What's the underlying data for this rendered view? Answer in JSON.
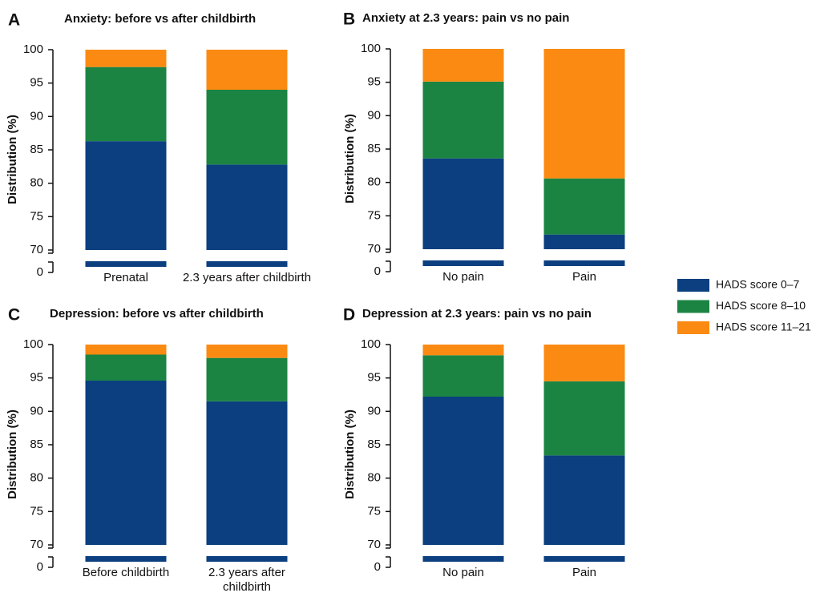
{
  "chart_data": [
    {
      "type": "bar",
      "stacked": true,
      "label": "A",
      "title": "Anxiety: before vs after childbirth",
      "y_label": "Distribution (%)",
      "categories": [
        "Prenatal",
        "2.3 years after childbirth"
      ],
      "series": [
        {
          "name": "HADS score 0–7",
          "color": "#0b3f7f",
          "values": [
            86.3,
            82.8
          ]
        },
        {
          "name": "HADS score 8–10",
          "color": "#1b8443",
          "values": [
            11.1,
            11.2
          ]
        },
        {
          "name": "HADS score 11–21",
          "color": "#fb8a12",
          "values": [
            2.6,
            6.0
          ]
        }
      ],
      "ylim": [
        0,
        100
      ],
      "ybreak": [
        0,
        70
      ],
      "yticks": [
        0,
        70,
        75,
        80,
        85,
        90,
        95,
        100
      ],
      "legend": "right"
    },
    {
      "type": "bar",
      "stacked": true,
      "label": "B",
      "title": "Anxiety at 2.3 years: pain vs no pain",
      "y_label": "Distribution (%)",
      "categories": [
        "No pain",
        "Pain"
      ],
      "series": [
        {
          "name": "HADS score 0–7",
          "color": "#0b3f7f",
          "values": [
            83.6,
            72.2
          ]
        },
        {
          "name": "HADS score 8–10",
          "color": "#1b8443",
          "values": [
            11.5,
            8.4
          ]
        },
        {
          "name": "HADS score 11–21",
          "color": "#fb8a12",
          "values": [
            4.9,
            19.4
          ]
        }
      ],
      "ylim": [
        0,
        100
      ],
      "ybreak": [
        0,
        70
      ],
      "yticks": [
        0,
        70,
        75,
        80,
        85,
        90,
        95,
        100
      ]
    },
    {
      "type": "bar",
      "stacked": true,
      "label": "C",
      "title": "Depression: before vs after childbirth",
      "y_label": "Distribution (%)",
      "categories": [
        "Before childbirth",
        "2.3 years after childbirth"
      ],
      "series": [
        {
          "name": "HADS score 0–7",
          "color": "#0b3f7f",
          "values": [
            94.6,
            91.5
          ]
        },
        {
          "name": "HADS score 8–10",
          "color": "#1b8443",
          "values": [
            3.9,
            6.5
          ]
        },
        {
          "name": "HADS score 11–21",
          "color": "#fb8a12",
          "values": [
            1.5,
            2.0
          ]
        }
      ],
      "ylim": [
        0,
        100
      ],
      "ybreak": [
        0,
        70
      ],
      "yticks": [
        0,
        70,
        75,
        80,
        85,
        90,
        95,
        100
      ]
    },
    {
      "type": "bar",
      "stacked": true,
      "label": "D",
      "title": "Depression at 2.3 years: pain vs no pain",
      "y_label": "Distribution (%)",
      "categories": [
        "No pain",
        "Pain"
      ],
      "series": [
        {
          "name": "HADS score 0–7",
          "color": "#0b3f7f",
          "values": [
            92.2,
            83.4
          ]
        },
        {
          "name": "HADS score 8–10",
          "color": "#1b8443",
          "values": [
            6.2,
            11.1
          ]
        },
        {
          "name": "HADS score 11–21",
          "color": "#fb8a12",
          "values": [
            1.6,
            5.5
          ]
        }
      ],
      "ylim": [
        0,
        100
      ],
      "ybreak": [
        0,
        70
      ],
      "yticks": [
        0,
        70,
        75,
        80,
        85,
        90,
        95,
        100
      ]
    }
  ]
}
